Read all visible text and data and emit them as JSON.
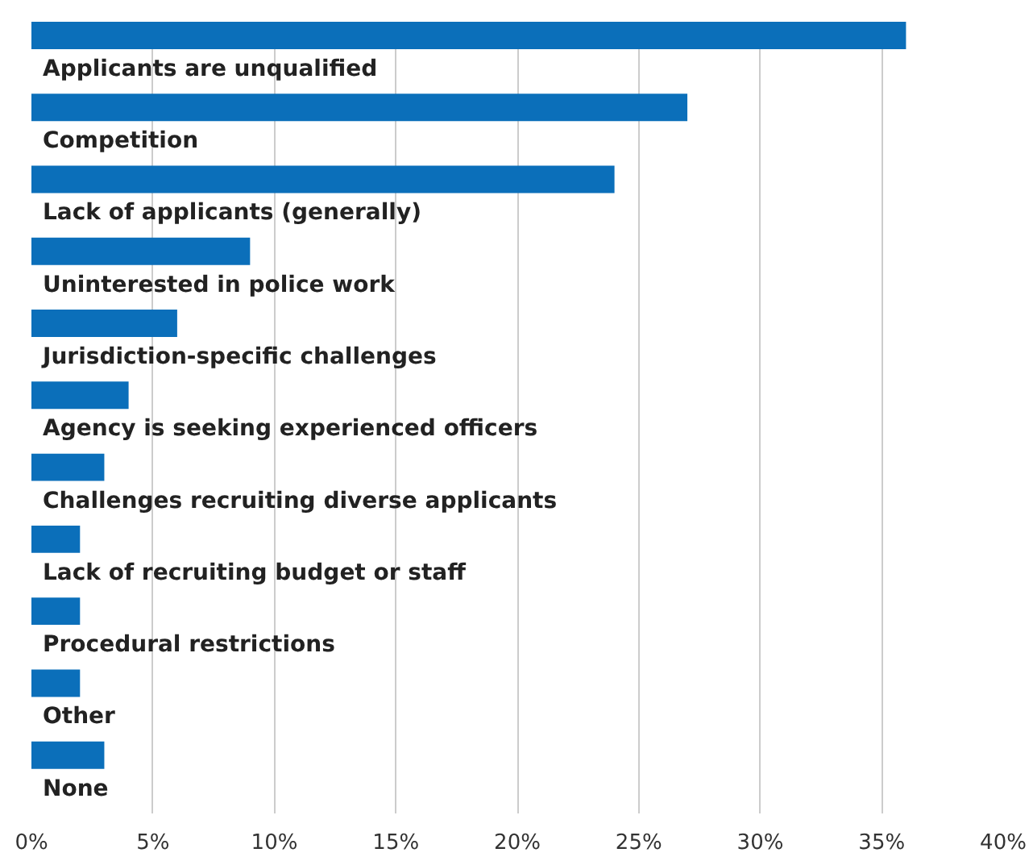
{
  "chart_data": {
    "type": "bar",
    "orientation": "horizontal",
    "categories": [
      "Applicants are unqualified",
      "Competition",
      "Lack of applicants (generally)",
      "Uninterested in police work",
      "Jurisdiction-specific challenges",
      "Agency is seeking experienced officers",
      "Challenges recruiting diverse applicants",
      "Lack of recruiting budget or staff",
      "Procedural restrictions",
      "Other",
      "None"
    ],
    "values": [
      36,
      27,
      24,
      9,
      6,
      4,
      3,
      2,
      2,
      2,
      3
    ],
    "color": "#0b6fba",
    "xlim": [
      0,
      40
    ],
    "xticks": [
      {
        "value": 0,
        "label": "0%"
      },
      {
        "value": 5,
        "label": "5%"
      },
      {
        "value": 10,
        "label": "10%"
      },
      {
        "value": 15,
        "label": "15%"
      },
      {
        "value": 20,
        "label": "20%"
      },
      {
        "value": 25,
        "label": "25%"
      },
      {
        "value": 30,
        "label": "30%"
      },
      {
        "value": 35,
        "label": "35%"
      },
      {
        "value": 40,
        "label": "40%"
      }
    ],
    "grid": "x"
  }
}
